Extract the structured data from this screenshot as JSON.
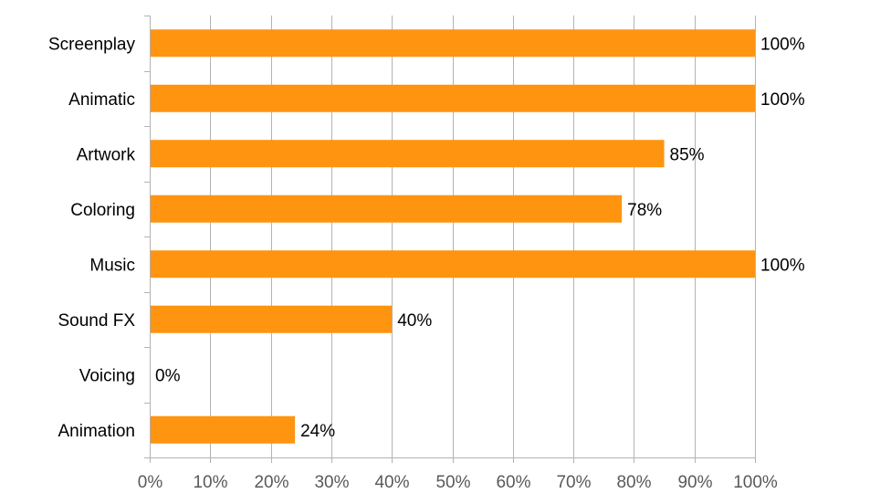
{
  "chart_data": {
    "type": "bar",
    "orientation": "horizontal",
    "categories": [
      "Screenplay",
      "Animatic",
      "Artwork",
      "Coloring",
      "Music",
      "Sound FX",
      "Voicing",
      "Animation"
    ],
    "values": [
      100,
      100,
      85,
      78,
      100,
      40,
      0,
      24
    ],
    "value_labels": [
      "100%",
      "100%",
      "85%",
      "78%",
      "100%",
      "40%",
      "0%",
      "24%"
    ],
    "x_ticks": [
      "0%",
      "10%",
      "20%",
      "30%",
      "40%",
      "50%",
      "60%",
      "70%",
      "80%",
      "90%",
      "100%"
    ],
    "xlim": [
      0,
      100
    ],
    "title": "",
    "xlabel": "",
    "ylabel": "",
    "grid": "vertical",
    "legend": "none",
    "bar_color": "#ff9410"
  }
}
